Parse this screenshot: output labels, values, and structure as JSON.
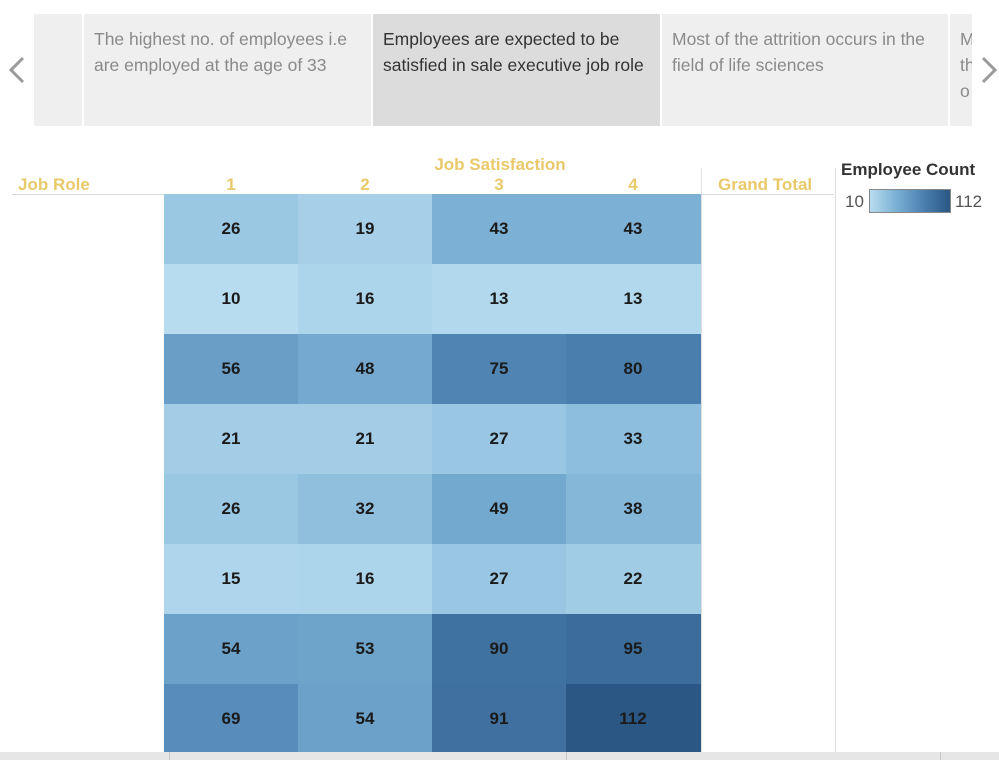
{
  "story": {
    "points": [
      {
        "text": ""
      },
      {
        "text": "The highest no. of employees i.e are employed at the age of 33"
      },
      {
        "text": "Employees are expected to be satisfied in sale executive job role"
      },
      {
        "text": "Most of the attrition occurs in the field of life sciences"
      },
      {
        "text": "M th o"
      }
    ],
    "selected_index": 2
  },
  "colors": {
    "header_text": "#e9c96a",
    "story_selected_bg": "#dcdcdc",
    "story_bg": "#efefef",
    "ramp_low": "#b7dcef",
    "ramp_high": "#2a5783"
  },
  "chart_data": {
    "type": "heatmap",
    "title": "",
    "column_group_label": "Job Satisfaction",
    "row_header": "Job Role",
    "grand_total_label": "Grand Total",
    "columns": [
      "1",
      "2",
      "3",
      "4"
    ],
    "rows": [
      "",
      "",
      "",
      "",
      "",
      "",
      "",
      ""
    ],
    "values": [
      [
        26,
        19,
        43,
        43
      ],
      [
        10,
        16,
        13,
        13
      ],
      [
        56,
        48,
        75,
        80
      ],
      [
        21,
        21,
        27,
        33
      ],
      [
        26,
        32,
        49,
        38
      ],
      [
        15,
        16,
        27,
        22
      ],
      [
        54,
        53,
        90,
        95
      ],
      [
        69,
        54,
        91,
        112
      ]
    ],
    "legend": {
      "title": "Employee Count",
      "min": 10,
      "max": 112,
      "min_label": "10",
      "max_label": "112"
    }
  }
}
